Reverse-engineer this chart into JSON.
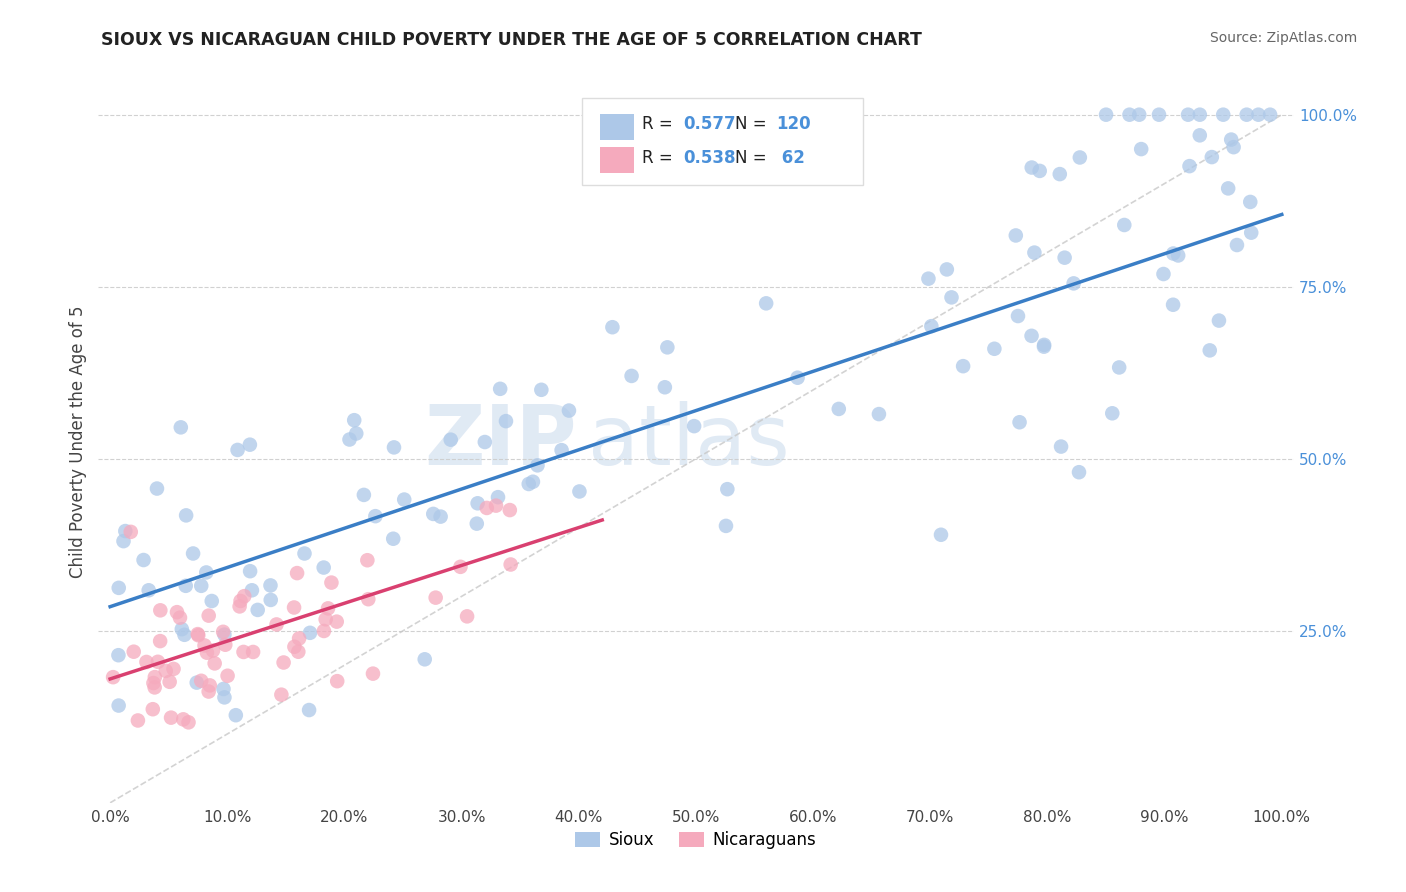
{
  "title": "SIOUX VS NICARAGUAN CHILD POVERTY UNDER THE AGE OF 5 CORRELATION CHART",
  "source": "Source: ZipAtlas.com",
  "ylabel": "Child Poverty Under the Age of 5",
  "legend_r1": "0.577",
  "legend_n1": "120",
  "legend_r2": "0.538",
  "legend_n2": " 62",
  "legend_label1": "Sioux",
  "legend_label2": "Nicaraguans",
  "sioux_color": "#adc8e8",
  "nicaraguan_color": "#f5aabd",
  "sioux_line_color": "#3a7ec6",
  "nicaraguan_line_color": "#d94070",
  "diagonal_color": "#c8c8c8",
  "watermark_top": "ZIP",
  "watermark_bot": "atlas",
  "watermark_color": "#ccdcee",
  "right_tick_color": "#4a90d9",
  "bg_color": "#ffffff",
  "sioux_slope": 0.57,
  "sioux_intercept": 0.285,
  "nicaraguan_slope": 0.55,
  "nicaraguan_intercept": 0.18,
  "ytick_vals": [
    0.25,
    0.5,
    0.75,
    1.0
  ]
}
